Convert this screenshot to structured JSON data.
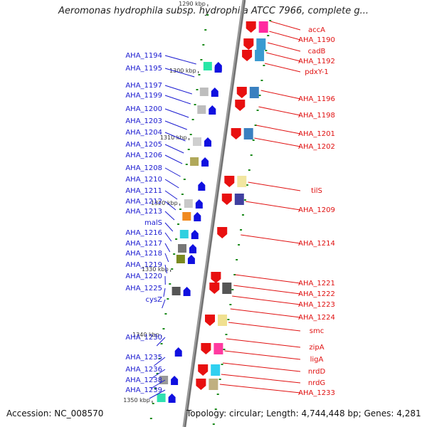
{
  "title": "Aeromonas hydrophila subsp. hydrophila ATCC 7966, complete g...",
  "footer": {
    "accession": "Accession: NC_008570",
    "topology": "Topology: circular; Length: 4,744,448 bp; Genes: 4,281"
  },
  "colors": {
    "left_label": "#1a1ad0",
    "right_label": "#e01010",
    "reverse_strand": "#1010e0",
    "forward_strand": "#e81010",
    "axis": "#888888",
    "tick_mark": "#1a8a1a"
  },
  "ticks": [
    "1290 kbp",
    "1300 kbp",
    "1310 kbp",
    "1320 kbp",
    "1330 kbp",
    "1340 kbp",
    "1350 kbp"
  ],
  "left_labels": [
    "AHA_1194",
    "AHA_1195",
    "AHA_1197",
    "AHA_1199",
    "AHA_1200",
    "AHA_1203",
    "AHA_1204",
    "AHA_1205",
    "AHA_1206",
    "AHA_1208",
    "AHA_1210",
    "AHA_1211",
    "AHA_1212",
    "AHA_1213",
    "malS",
    "AHA_1216",
    "AHA_1217",
    "AHA_1218",
    "AHA_1219",
    "AHA_1220",
    "AHA_1225",
    "cysZ",
    "AHA_1230",
    "AHA_1235",
    "AHA_1236",
    "AHA_1238",
    "AHA_1239"
  ],
  "right_labels": [
    "accA",
    "AHA_1190",
    "cadB",
    "AHA_1192",
    "pdxY-1",
    "AHA_1196",
    "AHA_1198",
    "AHA_1201",
    "AHA_1202",
    "tilS",
    "AHA_1209",
    "AHA_1214",
    "AHA_1221",
    "AHA_1222",
    "AHA_1223",
    "AHA_1224",
    "smc",
    "zipA",
    "ligA",
    "nrdD",
    "nrdG",
    "AHA_1233"
  ]
}
